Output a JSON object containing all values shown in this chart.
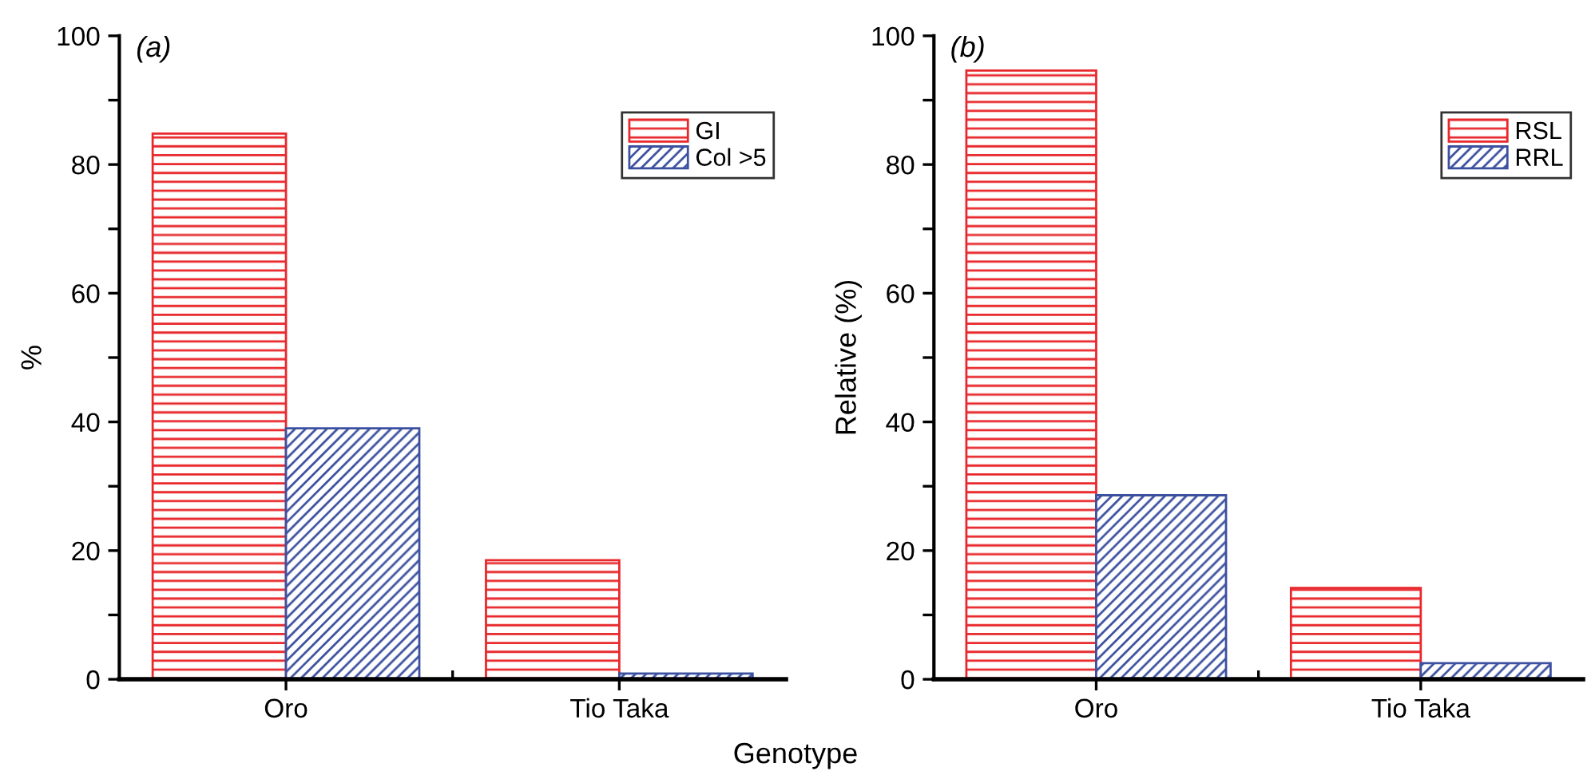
{
  "chart_data": [
    {
      "type": "bar",
      "title": "(a)",
      "ylabel": "%",
      "xlabel": "Genotype",
      "categories": [
        "Oro",
        "Tio Taka"
      ],
      "series": [
        {
          "name": "GI",
          "color": "#e8282c",
          "values": [
            84.8,
            18.5
          ]
        },
        {
          "name": "Col >5",
          "color": "#3c50a0",
          "values": [
            39.0,
            0.9
          ]
        }
      ],
      "ylim": [
        0,
        100
      ],
      "yticks": [
        0,
        {
          "value": 10,
          "label": null
        },
        20,
        {
          "value": 30,
          "label": null
        },
        40,
        {
          "value": 50,
          "label": null
        },
        60,
        {
          "value": 70,
          "label": null
        },
        80,
        {
          "value": 90,
          "label": null
        },
        100
      ],
      "grid": false,
      "legend": "top right"
    },
    {
      "type": "bar",
      "title": "(b)",
      "ylabel": "Relative (%)",
      "categories": [
        "Oro",
        "Tio Taka"
      ],
      "series": [
        {
          "name": "RSL",
          "color": "#e8282c",
          "values": [
            94.6,
            14.2
          ]
        },
        {
          "name": "RRL",
          "color": "#3c50a0",
          "values": [
            28.6,
            2.5
          ]
        }
      ],
      "ylim": [
        0,
        100
      ],
      "yticks": [
        0,
        {
          "value": 10,
          "label": null
        },
        20,
        {
          "value": 30,
          "label": null
        },
        40,
        {
          "value": 50,
          "label": null
        },
        60,
        {
          "value": 70,
          "label": null
        },
        80,
        {
          "value": 90,
          "label": null
        },
        100
      ],
      "grid": false,
      "legend": "top right"
    }
  ]
}
